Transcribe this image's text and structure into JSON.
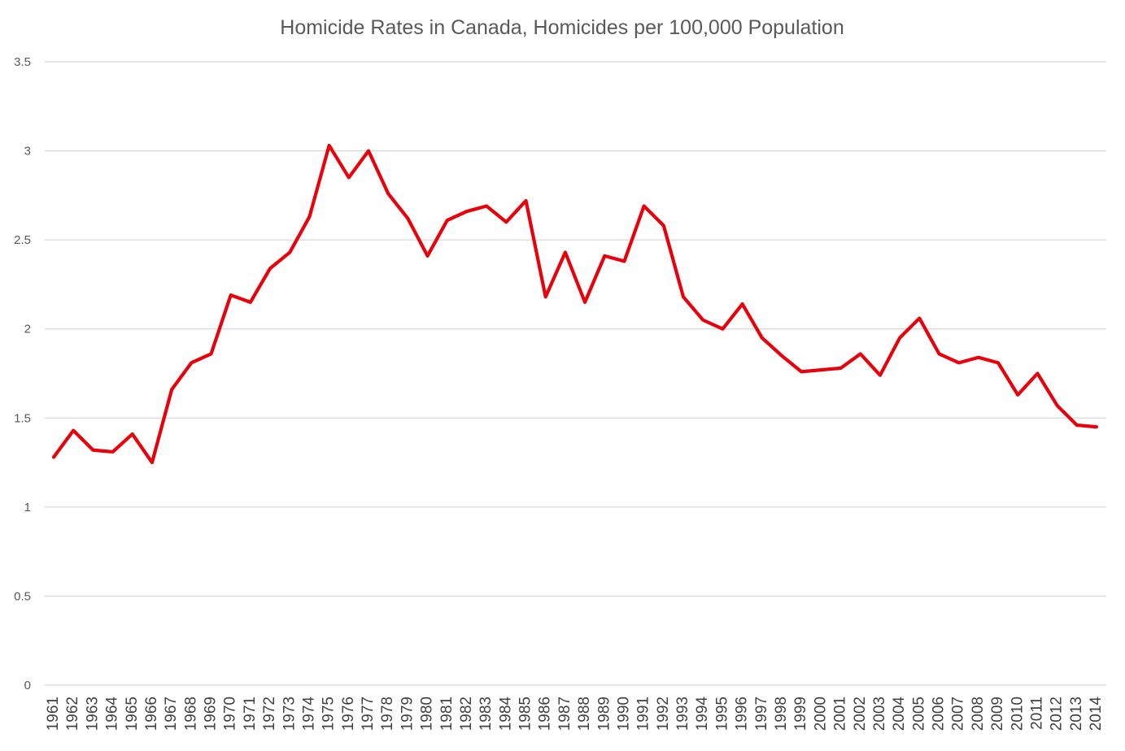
{
  "chart_data": {
    "type": "line",
    "title": "Homicide Rates in Canada, Homicides per 100,000 Population",
    "xlabel": "",
    "ylabel": "",
    "ylim": [
      0,
      3.5
    ],
    "yticks": [
      "0",
      "0.5",
      "1",
      "1.5",
      "2",
      "2.5",
      "3",
      "3.5"
    ],
    "ytick_values": [
      0,
      0.5,
      1,
      1.5,
      2,
      2.5,
      3,
      3.5
    ],
    "grid": true,
    "legend": "none",
    "categories": [
      "1961",
      "1962",
      "1963",
      "1964",
      "1965",
      "1966",
      "1967",
      "1968",
      "1969",
      "1970",
      "1971",
      "1972",
      "1973",
      "1974",
      "1975",
      "1976",
      "1977",
      "1978",
      "1979",
      "1980",
      "1981",
      "1982",
      "1983",
      "1984",
      "1985",
      "1986",
      "1987",
      "1988",
      "1989",
      "1990",
      "1991",
      "1992",
      "1993",
      "1994",
      "1995",
      "1996",
      "1997",
      "1998",
      "1999",
      "2000",
      "2001",
      "2002",
      "2003",
      "2004",
      "2005",
      "2006",
      "2007",
      "2008",
      "2009",
      "2010",
      "2011",
      "2012",
      "2013",
      "2014"
    ],
    "series": [
      {
        "name": "Homicides per 100,000 Population",
        "color": "#e8000b",
        "values": [
          1.28,
          1.43,
          1.32,
          1.31,
          1.41,
          1.25,
          1.66,
          1.81,
          1.86,
          2.19,
          2.15,
          2.34,
          2.43,
          2.63,
          3.03,
          2.85,
          3.0,
          2.76,
          2.62,
          2.41,
          2.61,
          2.66,
          2.69,
          2.6,
          2.72,
          2.18,
          2.43,
          2.15,
          2.41,
          2.38,
          2.69,
          2.58,
          2.18,
          2.05,
          2.0,
          2.14,
          1.95,
          1.85,
          1.76,
          1.77,
          1.78,
          1.86,
          1.74,
          1.95,
          2.06,
          1.86,
          1.81,
          1.84,
          1.81,
          1.63,
          1.75,
          1.57,
          1.46,
          1.45
        ]
      }
    ]
  }
}
